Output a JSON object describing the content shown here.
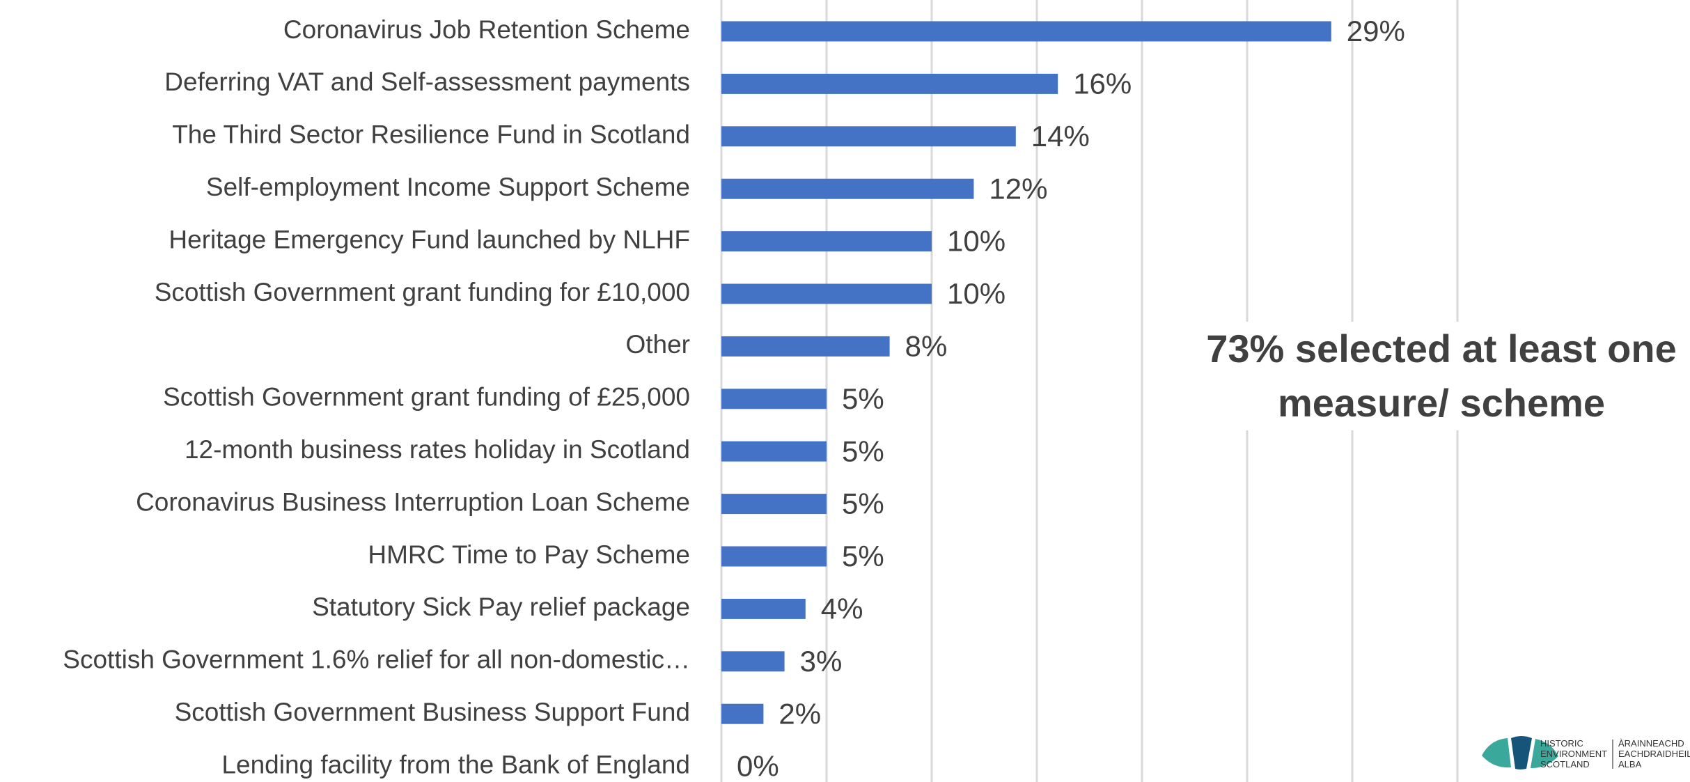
{
  "chart_data": {
    "type": "barh",
    "categories": [
      "Coronavirus Job Retention Scheme",
      "Deferring VAT and Self-assessment payments",
      "The Third Sector Resilience Fund in Scotland",
      "Self-employment Income Support Scheme",
      "Heritage Emergency Fund launched by NLHF",
      "Scottish Government grant funding for £10,000",
      "Other",
      "Scottish Government grant funding of £25,000",
      "12-month business rates holiday in Scotland",
      "Coronavirus Business Interruption Loan Scheme",
      "HMRC Time to Pay Scheme",
      "Statutory Sick Pay relief package",
      "Scottish Government 1.6% relief for all non-domestic…",
      "Scottish Government Business Support Fund",
      "Lending facility from the Bank of England"
    ],
    "values": [
      29,
      16,
      14,
      12,
      10,
      10,
      8,
      5,
      5,
      5,
      5,
      4,
      3,
      2,
      0
    ],
    "value_labels": [
      "29%",
      "16%",
      "14%",
      "12%",
      "10%",
      "10%",
      "8%",
      "5%",
      "5%",
      "5%",
      "5%",
      "4%",
      "3%",
      "2%",
      "0%"
    ],
    "color": "#4472c4",
    "xlim": [
      0,
      35
    ],
    "xticks": [
      0,
      5,
      10,
      15,
      20,
      25,
      30,
      35
    ],
    "show_tick_labels": false,
    "grid": true,
    "annotation": "73% selected at least one measure/ scheme"
  },
  "logo": {
    "english": "HISTORIC ENVIRONMENT SCOTLAND",
    "gaelic": "ÀRAINNEACHD EACHDRAIDHEIL ALBA"
  }
}
